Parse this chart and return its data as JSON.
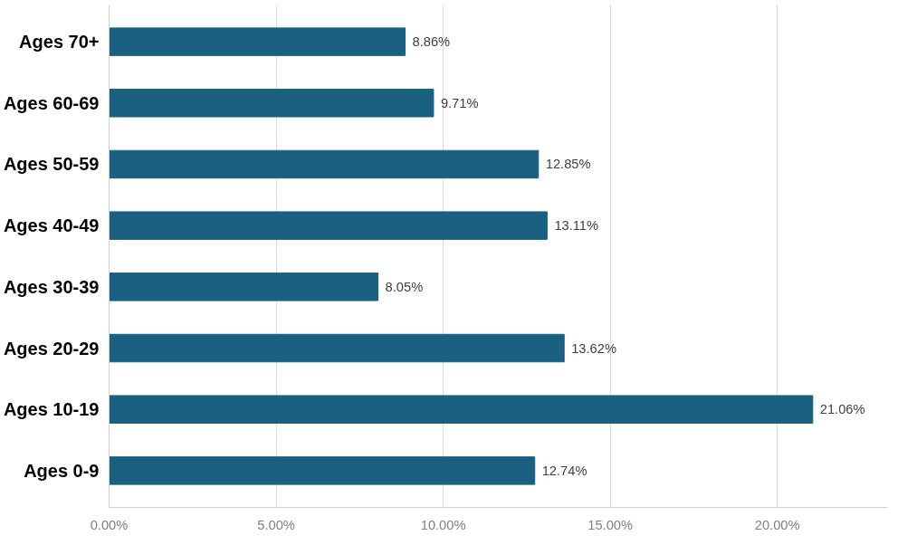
{
  "chart_data": {
    "type": "bar",
    "orientation": "horizontal",
    "categories": [
      "Ages 70+",
      "Ages 60-69",
      "Ages 50-59",
      "Ages 40-49",
      "Ages 30-39",
      "Ages 20-29",
      "Ages 10-19",
      "Ages 0-9"
    ],
    "values": [
      8.86,
      9.71,
      12.85,
      13.11,
      8.05,
      13.62,
      21.06,
      12.74
    ],
    "value_labels": [
      "8.86%",
      "9.71%",
      "12.85%",
      "13.11%",
      "8.05%",
      "13.62%",
      "21.06%",
      "12.74%"
    ],
    "color": "#1a6080",
    "xlim": [
      0,
      23.3
    ],
    "xticks": [
      {
        "value": 0,
        "label": "0.00%"
      },
      {
        "value": 5,
        "label": "5.00%"
      },
      {
        "value": 10,
        "label": "10.00%"
      },
      {
        "value": 15,
        "label": "15.00%"
      },
      {
        "value": 20,
        "label": "20.00%"
      }
    ],
    "grid": "x"
  }
}
